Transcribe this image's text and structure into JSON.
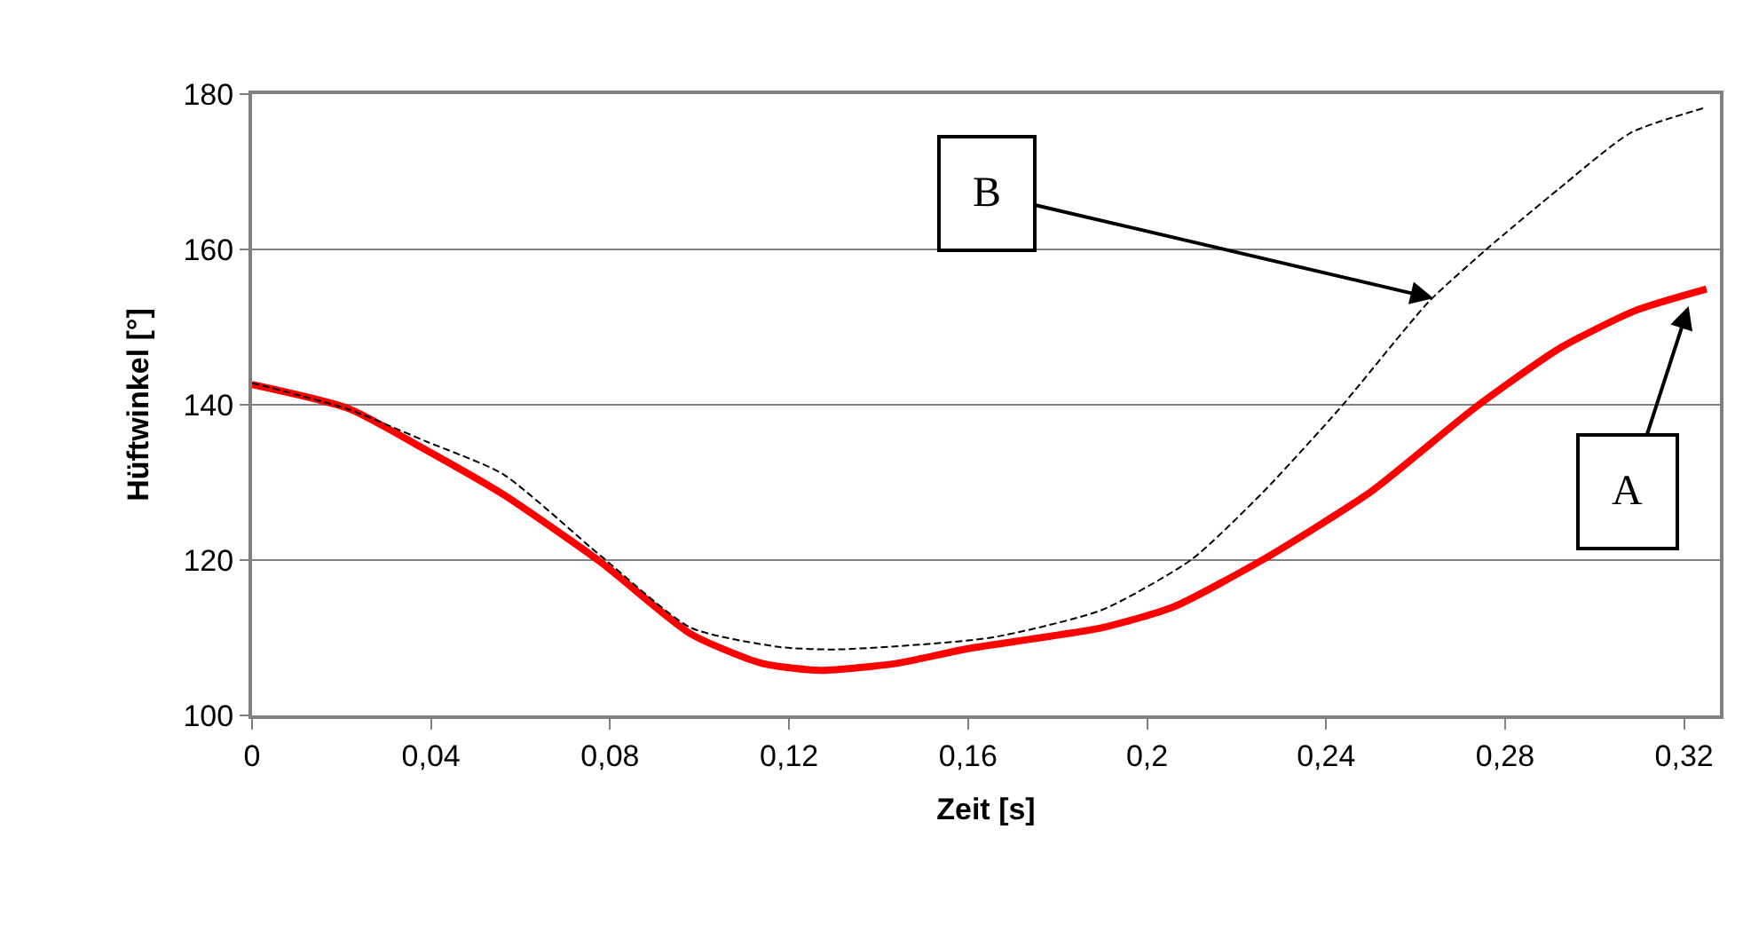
{
  "chart_data": {
    "type": "line",
    "xlabel": "Zeit [s]",
    "ylabel": "Hüftwinkel [°]",
    "xlim": [
      0,
      0.328
    ],
    "xticks": [
      0,
      {
        "value": 0.04,
        "label": "0,04"
      },
      {
        "value": 0.08,
        "label": "0,08"
      },
      {
        "value": 0.12,
        "label": "0,12"
      },
      {
        "value": 0.16,
        "label": "0,16"
      },
      {
        "value": 0.2,
        "label": "0,2"
      },
      {
        "value": 0.24,
        "label": "0,24"
      },
      {
        "value": 0.28,
        "label": "0,28"
      },
      {
        "value": 0.32,
        "label": "0,32"
      }
    ],
    "ylim": [
      100,
      180
    ],
    "yticks": [
      100,
      120,
      140,
      160,
      180
    ],
    "grid": "y",
    "marker": "none",
    "series": [
      {
        "color": "#ff0000",
        "line_style": "solid",
        "x": [
          0,
          0.0216,
          0.0388,
          0.056,
          0.078,
          0.098,
          0.114,
          0.127,
          0.144,
          0.16,
          0.19,
          0.206,
          0.226,
          0.25,
          0.273,
          0.292,
          0.309,
          0.325
        ],
        "values": [
          142.6,
          139.5,
          134.2,
          128.5,
          119.7,
          110.5,
          106.7,
          105.8,
          106.7,
          108.6,
          111.3,
          114.0,
          120.1,
          128.8,
          139.5,
          147.2,
          152.1,
          154.9
        ]
      },
      {
        "color": "#000000",
        "line_style": "dashed",
        "x": [
          0,
          0.0216,
          0.0388,
          0.056,
          0.078,
          0.098,
          0.118,
          0.131,
          0.165,
          0.19,
          0.21,
          0.226,
          0.243,
          0.263,
          0.276,
          0.292,
          0.308,
          0.325
        ],
        "values": [
          142.8,
          139.4,
          135.3,
          131.1,
          120.5,
          111.3,
          108.8,
          108.5,
          110.0,
          113.6,
          120.1,
          128.8,
          139.5,
          153.3,
          160.1,
          167.8,
          175.0,
          178.3
        ]
      }
    ],
    "annotations": [
      {
        "text": "B",
        "x": 0.264,
        "y": 153.7
      },
      {
        "text": "A",
        "x": 0.321,
        "y": 152.7
      }
    ]
  }
}
